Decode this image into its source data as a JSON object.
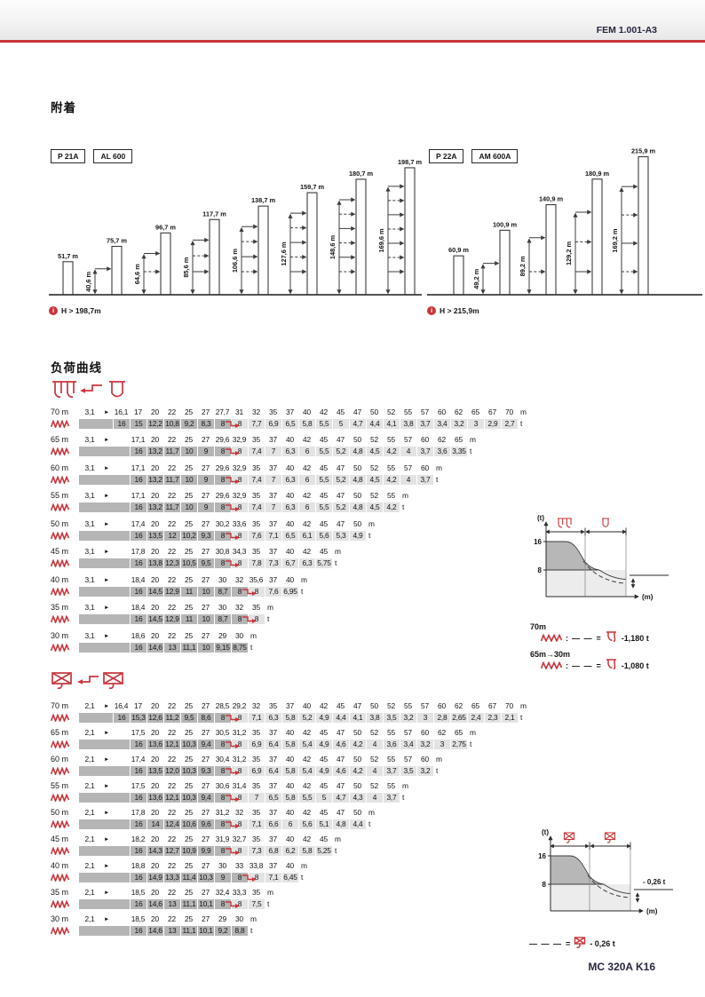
{
  "header": {
    "doc_code": "FEM 1.001-A3"
  },
  "sections": {
    "anchorage_title": "附着",
    "load_curves_title": "负荷曲线"
  },
  "misc": {
    "info": "i",
    "pointer": "►"
  },
  "units": {
    "radius": "m",
    "load": "t"
  },
  "colors": {
    "accent": "#c9353b",
    "navy": "#26263f",
    "bar_dark": "#b5b5b5",
    "bar_light": "#e3e3e3"
  },
  "diagrams": [
    {
      "badges": [
        "P 21A",
        "AL 600"
      ],
      "note": "H > 198,7m",
      "towers": [
        {
          "height": "51,7 m"
        },
        {
          "height": "75,7 m",
          "anchor": "40,6 m",
          "arrows": 1
        },
        {
          "height": "96,7 m",
          "anchor": "64,6 m",
          "arrows": 2
        },
        {
          "height": "117,7 m",
          "anchor": "85,6 m",
          "arrows": 3
        },
        {
          "height": "138,7 m",
          "anchor": "106,6 m",
          "arrows": 4
        },
        {
          "height": "159,7 m",
          "anchor": "127,6 m",
          "arrows": 5
        },
        {
          "height": "180,7 m",
          "anchor": "148,6 m",
          "arrows": 6
        },
        {
          "height": "198,7 m",
          "anchor": "169,6 m",
          "arrows": 7
        }
      ]
    },
    {
      "badges": [
        "P 22A",
        "AM 600A"
      ],
      "note": "H > 215,9m",
      "towers": [
        {
          "height": "60,9 m"
        },
        {
          "height": "100,9 m",
          "anchor": "49,2 m",
          "arrows": 1
        },
        {
          "height": "140,9 m",
          "anchor": "89,2 m",
          "arrows": 2
        },
        {
          "height": "180,9 m",
          "anchor": "129,2 m",
          "arrows": 3
        },
        {
          "height": "215,9 m",
          "anchor": "169,2 m",
          "arrows": 4
        }
      ]
    }
  ],
  "tables": [
    {
      "rows": [
        {
          "range": "70 m",
          "min": "3,1",
          "indent": 0,
          "link": 6,
          "radii": [
            "16,1",
            "17",
            "20",
            "22",
            "25",
            "27",
            "27,7",
            "31",
            "32",
            "35",
            "37",
            "40",
            "42",
            "45",
            "47",
            "50",
            "52",
            "55",
            "57",
            "60",
            "62",
            "65",
            "67",
            "70"
          ],
          "loads": [
            "16",
            "15",
            "12,2",
            "10,8",
            "9,2",
            "8,3",
            "8",
            "8",
            "7,7",
            "6,9",
            "6,5",
            "5,8",
            "5,5",
            "5",
            "4,7",
            "4,4",
            "4,1",
            "3,8",
            "3,7",
            "3,4",
            "3,2",
            "3",
            "2,9",
            "2,7"
          ]
        },
        {
          "range": "65 m",
          "min": "3,1",
          "indent": 1,
          "link": 5,
          "radii": [
            "17,1",
            "20",
            "22",
            "25",
            "27",
            "29,6",
            "32,9",
            "35",
            "37",
            "40",
            "42",
            "45",
            "47",
            "50",
            "52",
            "55",
            "57",
            "60",
            "62",
            "65"
          ],
          "loads": [
            "16",
            "13,2",
            "11,7",
            "10",
            "9",
            "8",
            "8",
            "7,4",
            "7",
            "6,3",
            "6",
            "5,5",
            "5,2",
            "4,8",
            "4,5",
            "4,2",
            "4",
            "3,7",
            "3,6",
            "3,35"
          ]
        },
        {
          "range": "60 m",
          "min": "3,1",
          "indent": 1,
          "link": 5,
          "radii": [
            "17,1",
            "20",
            "22",
            "25",
            "27",
            "29,6",
            "32,9",
            "35",
            "37",
            "40",
            "42",
            "45",
            "47",
            "50",
            "52",
            "55",
            "57",
            "60"
          ],
          "loads": [
            "16",
            "13,2",
            "11,7",
            "10",
            "9",
            "8",
            "8",
            "7,4",
            "7",
            "6,3",
            "6",
            "5,5",
            "5,2",
            "4,8",
            "4,5",
            "4,2",
            "4",
            "3,7"
          ]
        },
        {
          "range": "55 m",
          "min": "3,1",
          "indent": 1,
          "link": 5,
          "radii": [
            "17,1",
            "20",
            "22",
            "25",
            "27",
            "29,6",
            "32,9",
            "35",
            "37",
            "40",
            "42",
            "45",
            "47",
            "50",
            "52",
            "55"
          ],
          "loads": [
            "16",
            "13,2",
            "11,7",
            "10",
            "9",
            "8",
            "8",
            "7,4",
            "7",
            "6,3",
            "6",
            "5,5",
            "5,2",
            "4,8",
            "4,5",
            "4,2"
          ]
        },
        {
          "range": "50 m",
          "min": "3,1",
          "indent": 1,
          "link": 5,
          "radii": [
            "17,4",
            "20",
            "22",
            "25",
            "27",
            "30,2",
            "33,6",
            "35",
            "37",
            "40",
            "42",
            "45",
            "47",
            "50"
          ],
          "loads": [
            "16",
            "13,5",
            "12",
            "10,2",
            "9,3",
            "8",
            "8",
            "7,6",
            "7,1",
            "6,5",
            "6,1",
            "5,6",
            "5,3",
            "4,9"
          ]
        },
        {
          "range": "45 m",
          "min": "3,1",
          "indent": 1,
          "link": 5,
          "radii": [
            "17,8",
            "20",
            "22",
            "25",
            "27",
            "30,8",
            "34,3",
            "35",
            "37",
            "40",
            "42",
            "45"
          ],
          "loads": [
            "16",
            "13,8",
            "12,3",
            "10,5",
            "9,5",
            "8",
            "8",
            "7,8",
            "7,3",
            "6,7",
            "6,3",
            "5,75"
          ]
        },
        {
          "range": "40 m",
          "min": "3,1",
          "indent": 1,
          "link": 6,
          "radii": [
            "18,4",
            "20",
            "22",
            "25",
            "27",
            "30",
            "32",
            "35,6",
            "37",
            "40"
          ],
          "loads": [
            "16",
            "14,5",
            "12,9",
            "11",
            "10",
            "8,7",
            "8",
            "8",
            "7,6",
            "6,95"
          ]
        },
        {
          "range": "35 m",
          "min": "3,1",
          "indent": 1,
          "link": 6,
          "radii": [
            "18,4",
            "20",
            "22",
            "25",
            "27",
            "30",
            "32",
            "35"
          ],
          "loads": [
            "16",
            "14,5",
            "12,9",
            "11",
            "10",
            "8,7",
            "8",
            "8"
          ]
        },
        {
          "range": "30 m",
          "min": "3,1",
          "indent": 1,
          "link": null,
          "radii": [
            "18,6",
            "20",
            "22",
            "25",
            "27",
            "29",
            "30"
          ],
          "loads": [
            "16",
            "14,6",
            "13",
            "11,1",
            "10",
            "9,15",
            "8,75"
          ]
        }
      ]
    },
    {
      "rows": [
        {
          "range": "70 m",
          "min": "2,1",
          "indent": 0,
          "link": 6,
          "radii": [
            "16,4",
            "17",
            "20",
            "22",
            "25",
            "27",
            "28,5",
            "29,2",
            "32",
            "35",
            "37",
            "40",
            "42",
            "45",
            "47",
            "50",
            "52",
            "55",
            "57",
            "60",
            "62",
            "65",
            "67",
            "70"
          ],
          "loads": [
            "16",
            "15,3",
            "12,6",
            "11,2",
            "9,5",
            "8,6",
            "8",
            "8",
            "7,1",
            "6,3",
            "5,8",
            "5,2",
            "4,9",
            "4,4",
            "4,1",
            "3,8",
            "3,5",
            "3,2",
            "3",
            "2,8",
            "2,65",
            "2,4",
            "2,3",
            "2,1"
          ]
        },
        {
          "range": "65 m",
          "min": "2,1",
          "indent": 1,
          "link": 5,
          "radii": [
            "17,5",
            "20",
            "22",
            "25",
            "27",
            "30,5",
            "31,2",
            "35",
            "37",
            "40",
            "42",
            "45",
            "47",
            "50",
            "52",
            "55",
            "57",
            "60",
            "62",
            "65"
          ],
          "loads": [
            "16",
            "13,6",
            "12,1",
            "10,3",
            "9,4",
            "8",
            "8",
            "6,9",
            "6,4",
            "5,8",
            "5,4",
            "4,9",
            "4,6",
            "4,2",
            "4",
            "3,6",
            "3,4",
            "3,2",
            "3",
            "2,75"
          ]
        },
        {
          "range": "60 m",
          "min": "2,1",
          "indent": 1,
          "link": 5,
          "radii": [
            "17,4",
            "20",
            "22",
            "25",
            "27",
            "30,4",
            "31,2",
            "35",
            "37",
            "40",
            "42",
            "45",
            "47",
            "50",
            "52",
            "55",
            "57",
            "60"
          ],
          "loads": [
            "16",
            "13,5",
            "12,0",
            "10,3",
            "9,3",
            "8",
            "8",
            "6,9",
            "6,4",
            "5,8",
            "5,4",
            "4,9",
            "4,6",
            "4,2",
            "4",
            "3,7",
            "3,5",
            "3,2"
          ]
        },
        {
          "range": "55 m",
          "min": "2,1",
          "indent": 1,
          "link": 5,
          "radii": [
            "17,5",
            "20",
            "22",
            "25",
            "27",
            "30,6",
            "31,4",
            "35",
            "37",
            "40",
            "42",
            "45",
            "47",
            "50",
            "52",
            "55"
          ],
          "loads": [
            "16",
            "13,6",
            "12,1",
            "10,3",
            "9,4",
            "8",
            "8",
            "7",
            "6,5",
            "5,8",
            "5,5",
            "5",
            "4,7",
            "4,3",
            "4",
            "3,7"
          ]
        },
        {
          "range": "50 m",
          "min": "2,1",
          "indent": 1,
          "link": 5,
          "radii": [
            "17,8",
            "20",
            "22",
            "25",
            "27",
            "31,2",
            "32",
            "35",
            "37",
            "40",
            "42",
            "45",
            "47",
            "50"
          ],
          "loads": [
            "16",
            "14",
            "12,4",
            "10,6",
            "9,6",
            "8",
            "8",
            "7,1",
            "6,6",
            "6",
            "5,6",
            "5,1",
            "4,8",
            "4,4"
          ]
        },
        {
          "range": "45 m",
          "min": "2,1",
          "indent": 1,
          "link": 5,
          "radii": [
            "18,2",
            "20",
            "22",
            "25",
            "27",
            "31,9",
            "32,7",
            "35",
            "37",
            "40",
            "42",
            "45"
          ],
          "loads": [
            "16",
            "14,3",
            "12,7",
            "10,9",
            "9,9",
            "8",
            "8",
            "7,3",
            "6,8",
            "6,2",
            "5,8",
            "5,25"
          ]
        },
        {
          "range": "40 m",
          "min": "2,1",
          "indent": 1,
          "link": 6,
          "radii": [
            "18,8",
            "20",
            "22",
            "25",
            "27",
            "30",
            "33",
            "33,8",
            "37",
            "40"
          ],
          "loads": [
            "16",
            "14,9",
            "13,3",
            "11,4",
            "10,3",
            "9",
            "8",
            "8",
            "7,1",
            "6,45"
          ]
        },
        {
          "range": "35 m",
          "min": "2,1",
          "indent": 1,
          "link": 5,
          "radii": [
            "18,5",
            "20",
            "22",
            "25",
            "27",
            "32,4",
            "33,3",
            "35"
          ],
          "loads": [
            "16",
            "14,6",
            "13",
            "11,1",
            "10,1",
            "8",
            "8",
            "7,5"
          ]
        },
        {
          "range": "30 m",
          "min": "2,1",
          "indent": 1,
          "link": null,
          "radii": [
            "18,5",
            "20",
            "22",
            "25",
            "27",
            "29",
            "30"
          ],
          "loads": [
            "16",
            "14,6",
            "13",
            "11,1",
            "10,1",
            "9,2",
            "8,8"
          ]
        }
      ]
    }
  ],
  "charts": [
    {
      "ylabel": "(t)",
      "xlabel": "(m)",
      "yticks": [
        "16",
        "8"
      ],
      "legend": [
        {
          "label": "70m",
          "sep": ":",
          "dash": "— —",
          "equals": "=",
          "value": "-1,180 t"
        },
        {
          "label": "65m→30m",
          "sep": ":",
          "dash": "— —",
          "equals": "=",
          "value": "-1,080 t"
        }
      ]
    },
    {
      "ylabel": "(t)",
      "xlabel": "(m)",
      "yticks": [
        "16",
        "8"
      ],
      "annotation": "- 0,26 t",
      "legend": [
        {
          "dash": "— — —",
          "equals": "=",
          "value": "- 0,26 t"
        }
      ]
    }
  ],
  "footer": {
    "model": "MC 320A K16"
  }
}
